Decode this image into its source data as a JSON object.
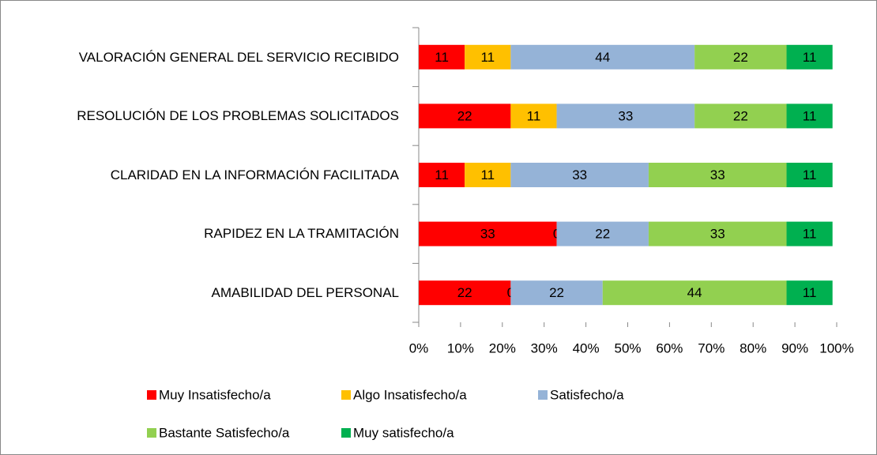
{
  "chart_data": {
    "type": "stacked_barh",
    "categories": [
      "VALORACIÓN GENERAL DEL SERVICIO RECIBIDO",
      "RESOLUCIÓN DE LOS PROBLEMAS SOLICITADOS",
      "CLARIDAD EN LA INFORMACIÓN FACILITADA",
      "RAPIDEZ EN LA TRAMITACIÓN",
      "AMABILIDAD DEL PERSONAL"
    ],
    "series": [
      {
        "name": "Muy Insatisfecho/a",
        "color": "#ff0000",
        "values": [
          11,
          22,
          11,
          33,
          22
        ]
      },
      {
        "name": "Algo Insatisfecho/a",
        "color": "#ffc000",
        "values": [
          11,
          11,
          11,
          0,
          0
        ]
      },
      {
        "name": "Satisfecho/a",
        "color": "#95b3d7",
        "values": [
          44,
          33,
          33,
          22,
          22
        ]
      },
      {
        "name": "Bastante Satisfecho/a",
        "color": "#92d050",
        "values": [
          22,
          22,
          33,
          33,
          44
        ]
      },
      {
        "name": "Muy satisfecho/a",
        "color": "#00b050",
        "values": [
          11,
          11,
          11,
          11,
          11
        ]
      }
    ],
    "xlim": [
      0,
      100
    ],
    "xticks": [
      {
        "value": 0,
        "label": "0%"
      },
      {
        "value": 10,
        "label": "10%"
      },
      {
        "value": 20,
        "label": "20%"
      },
      {
        "value": 30,
        "label": "30%"
      },
      {
        "value": 40,
        "label": "40%"
      },
      {
        "value": 50,
        "label": "50%"
      },
      {
        "value": 60,
        "label": "60%"
      },
      {
        "value": 70,
        "label": "70%"
      },
      {
        "value": 80,
        "label": "80%"
      },
      {
        "value": 90,
        "label": "90%"
      },
      {
        "value": 100,
        "label": "100%"
      }
    ],
    "legend": "bottom"
  }
}
